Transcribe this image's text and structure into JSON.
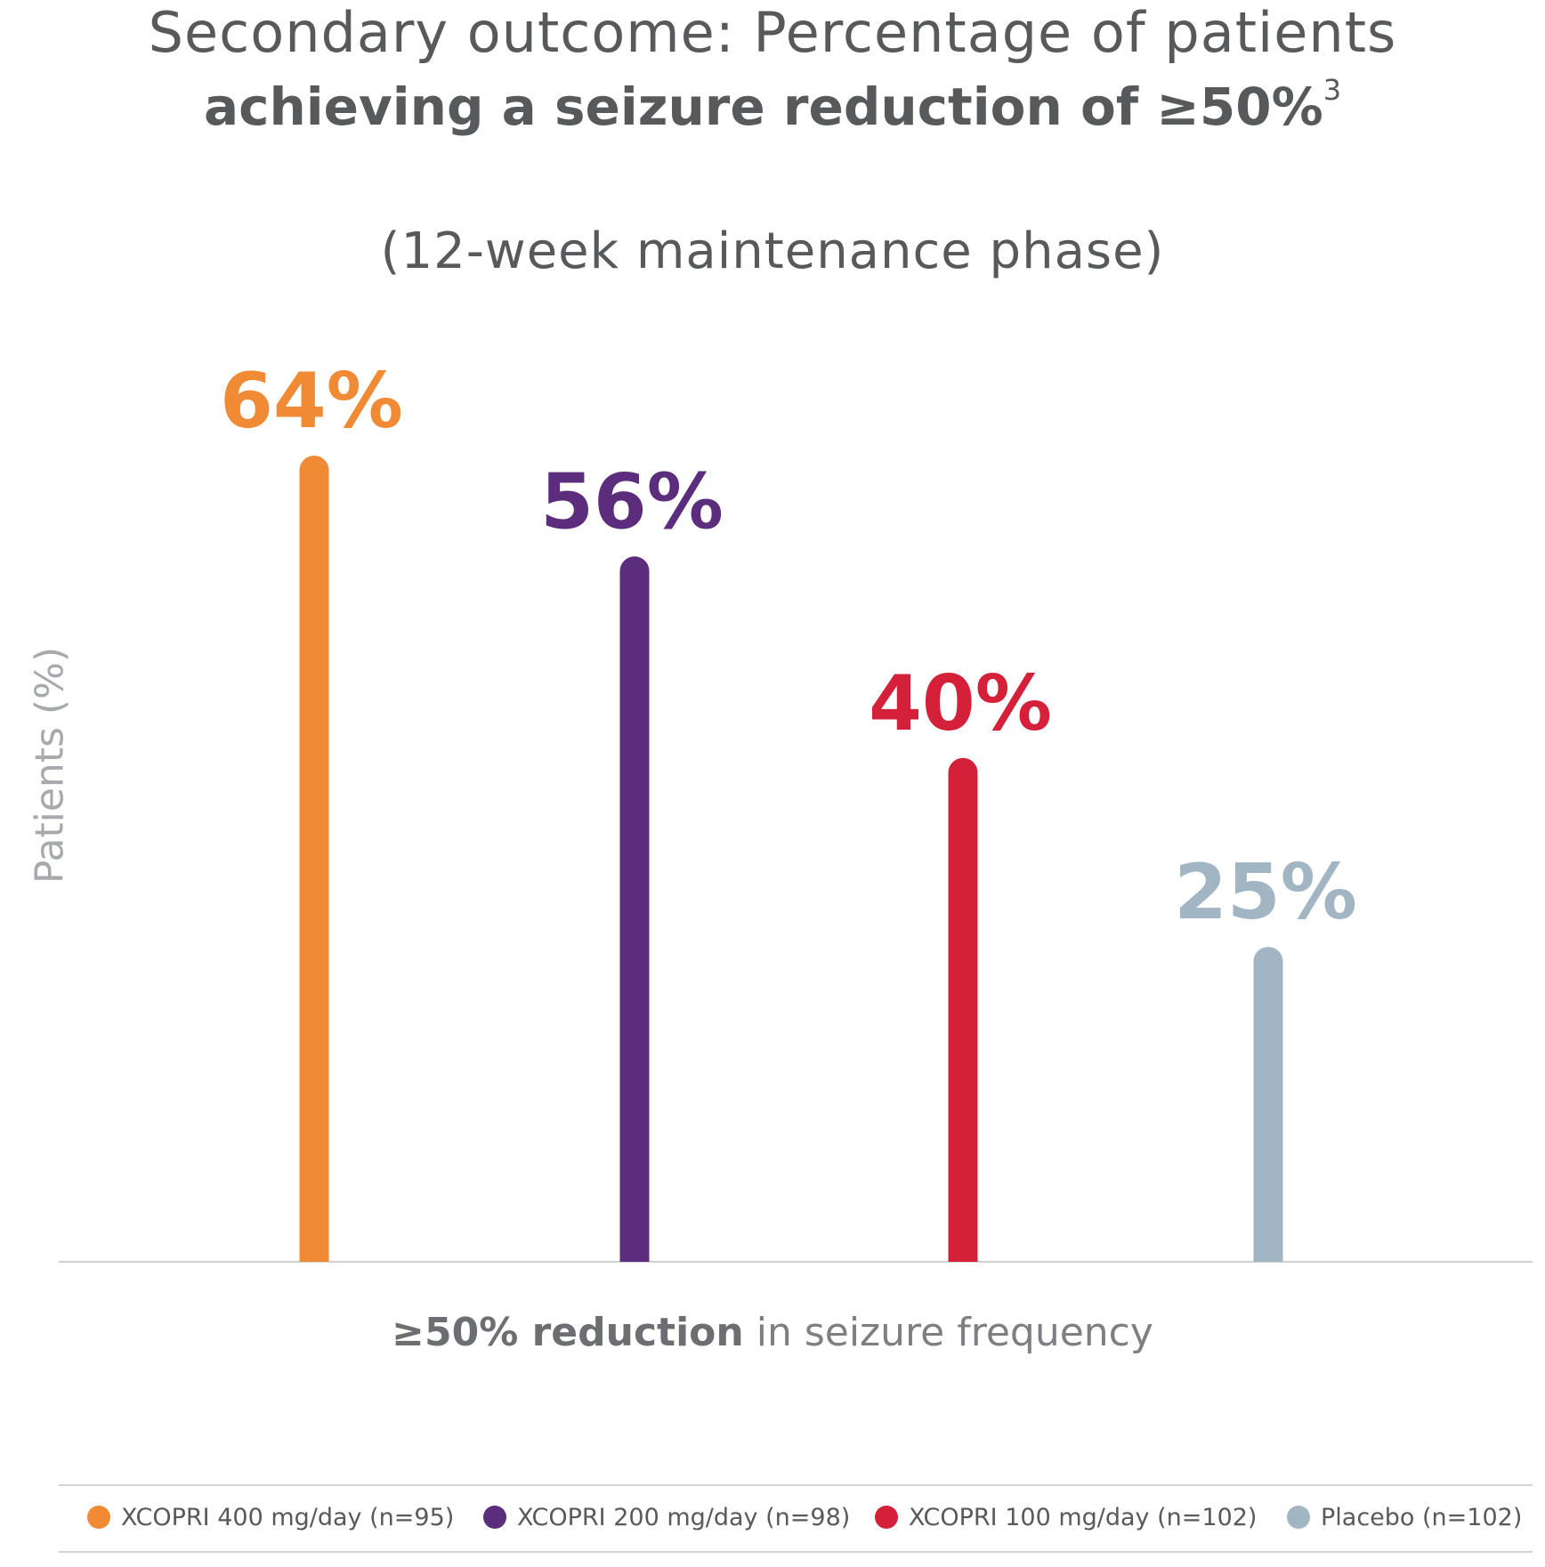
{
  "title": {
    "line1": "Secondary outcome: Percentage of patients",
    "line2": "achieving a seizure reduction of ≥50%",
    "superscript": "3",
    "subtitle": "(12-week maintenance phase)"
  },
  "chart_data": {
    "type": "bar",
    "categories": [
      "XCOPRI 400 mg/day (n=95)",
      "XCOPRI 200 mg/day (n=98)",
      "XCOPRI 100 mg/day (n=102)",
      "Placebo (n=102)"
    ],
    "values": [
      64,
      56,
      40,
      25
    ],
    "data_labels": [
      "64%",
      "56%",
      "40%",
      "25%"
    ],
    "colors": [
      "#f08a35",
      "#5b2d7c",
      "#d5203a",
      "#a2b5c3"
    ],
    "ylabel": "Patients (%)",
    "xlabel_bold": "≥50% reduction",
    "xlabel_rest": " in seizure frequency",
    "ylim": [
      0,
      64
    ],
    "grid": false,
    "legend_position": "bottom"
  },
  "legend": [
    {
      "label": "XCOPRI 400 mg/day (n=95)",
      "color": "#f08a35"
    },
    {
      "label": "XCOPRI 200 mg/day (n=98)",
      "color": "#5b2d7c"
    },
    {
      "label": "XCOPRI 100 mg/day (n=102)",
      "color": "#d5203a"
    },
    {
      "label": "Placebo (n=102)",
      "color": "#a2b5c3"
    }
  ]
}
